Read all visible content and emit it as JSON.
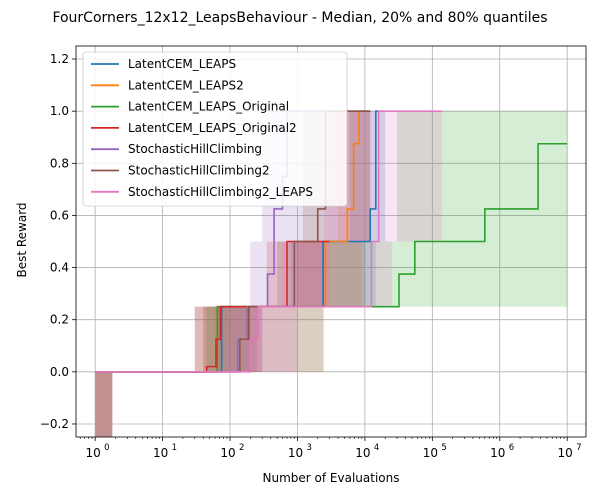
{
  "chart_data": {
    "type": "line",
    "title": "FourCorners_12x12_LeapsBehaviour - Median, 20% and 80% quantiles",
    "xlabel": "Number of Evaluations",
    "ylabel": "Best Reward",
    "xscale": "log",
    "xlim": [
      0.52,
      19000000
    ],
    "ylim": [
      -0.25,
      1.25
    ],
    "grid": true,
    "legend_position": "top-left",
    "xticks": [
      {
        "value": 1,
        "base": "10",
        "exp": "0"
      },
      {
        "value": 10,
        "base": "10",
        "exp": "1"
      },
      {
        "value": 100,
        "base": "10",
        "exp": "2"
      },
      {
        "value": 1000,
        "base": "10",
        "exp": "3"
      },
      {
        "value": 10000,
        "base": "10",
        "exp": "4"
      },
      {
        "value": 100000,
        "base": "10",
        "exp": "5"
      },
      {
        "value": 1000000,
        "base": "10",
        "exp": "6"
      },
      {
        "value": 10000000,
        "base": "10",
        "exp": "7"
      }
    ],
    "yticks": [
      {
        "value": -0.2,
        "label": "−0.2"
      },
      {
        "value": 0.0,
        "label": "0.0"
      },
      {
        "value": 0.2,
        "label": "0.2"
      },
      {
        "value": 0.4,
        "label": "0.4"
      },
      {
        "value": 0.6,
        "label": "0.6"
      },
      {
        "value": 0.8,
        "label": "0.8"
      },
      {
        "value": 1.0,
        "label": "1.0"
      },
      {
        "value": 1.2,
        "label": "1.2"
      }
    ],
    "series": [
      {
        "name": "LatentCEM_LEAPS",
        "color": "#1f77b4",
        "median": [
          [
            1,
            0
          ],
          [
            75,
            0
          ],
          [
            75,
            0.25
          ],
          [
            2400,
            0.25
          ],
          [
            2400,
            0.5
          ],
          [
            12000,
            0.5
          ],
          [
            12000,
            0.625
          ],
          [
            14500,
            0.625
          ],
          [
            14500,
            1.0
          ],
          [
            20000,
            1.0
          ]
        ],
        "band_lower": [
          [
            1,
            0
          ],
          [
            2400,
            0
          ],
          [
            2400,
            0.25
          ],
          [
            14500,
            0.25
          ],
          [
            14500,
            0.5
          ],
          [
            20000,
            0.5
          ]
        ],
        "band_upper": [
          [
            1,
            0
          ],
          [
            40,
            0
          ],
          [
            40,
            0.25
          ],
          [
            800,
            0.25
          ],
          [
            800,
            0.5
          ],
          [
            6000,
            0.5
          ],
          [
            6000,
            1.0
          ],
          [
            20000,
            1.0
          ]
        ]
      },
      {
        "name": "LatentCEM_LEAPS2",
        "color": "#ff7f0e",
        "median": [
          [
            1,
            0
          ],
          [
            65,
            0
          ],
          [
            65,
            0.25
          ],
          [
            2600,
            0.25
          ],
          [
            2600,
            0.5
          ],
          [
            5500,
            0.5
          ],
          [
            5500,
            0.625
          ],
          [
            6800,
            0.625
          ],
          [
            6800,
            0.875
          ],
          [
            8200,
            0.875
          ],
          [
            8200,
            1.0
          ],
          [
            12000,
            1.0
          ]
        ],
        "band_lower": [
          [
            1,
            0
          ],
          [
            2500,
            0
          ],
          [
            2500,
            0.25
          ],
          [
            9000,
            0.25
          ],
          [
            9000,
            0.5
          ],
          [
            12000,
            0.5
          ]
        ],
        "band_upper": [
          [
            1,
            0
          ],
          [
            40,
            0
          ],
          [
            40,
            0.25
          ],
          [
            1000,
            0.25
          ],
          [
            1000,
            0.5
          ],
          [
            4000,
            0.5
          ],
          [
            4000,
            1.0
          ],
          [
            12000,
            1.0
          ]
        ]
      },
      {
        "name": "LatentCEM_LEAPS_Original",
        "color": "#2ca02c",
        "median": [
          [
            1,
            0
          ],
          [
            65,
            0
          ],
          [
            65,
            0.25
          ],
          [
            32000,
            0.25
          ],
          [
            32000,
            0.375
          ],
          [
            55000,
            0.375
          ],
          [
            55000,
            0.5
          ],
          [
            600000,
            0.5
          ],
          [
            600000,
            0.625
          ],
          [
            3700000,
            0.625
          ],
          [
            3700000,
            0.875
          ],
          [
            10000000,
            0.875
          ]
        ],
        "band_lower": [
          [
            1,
            0
          ],
          [
            200,
            0
          ],
          [
            200,
            0.25
          ],
          [
            10000000,
            0.25
          ]
        ],
        "band_upper": [
          [
            1,
            0
          ],
          [
            45,
            0
          ],
          [
            45,
            0.25
          ],
          [
            3000,
            0.25
          ],
          [
            3000,
            0.5
          ],
          [
            30000,
            0.5
          ],
          [
            30000,
            1.0
          ],
          [
            10000000,
            1.0
          ]
        ]
      },
      {
        "name": "LatentCEM_LEAPS_Original2",
        "color": "#d62728",
        "median": [
          [
            1,
            0
          ],
          [
            45,
            0
          ],
          [
            45,
            0.02
          ],
          [
            62,
            0.02
          ],
          [
            62,
            0.125
          ],
          [
            72,
            0.125
          ],
          [
            72,
            0.25
          ],
          [
            700,
            0.25
          ],
          [
            700,
            0.5
          ],
          [
            3000,
            0.5
          ]
        ],
        "band_lower": [
          [
            1,
            0
          ],
          [
            300,
            0
          ],
          [
            300,
            0.25
          ],
          [
            3000,
            0.25
          ]
        ],
        "band_upper": [
          [
            1,
            0
          ],
          [
            30,
            0
          ],
          [
            30,
            0.25
          ],
          [
            350,
            0.25
          ],
          [
            350,
            0.5
          ],
          [
            3000,
            0.5
          ]
        ]
      },
      {
        "name": "StochasticHillClimbing",
        "color": "#9467bd",
        "median": [
          [
            1,
            0
          ],
          [
            130,
            0
          ],
          [
            130,
            0.125
          ],
          [
            180,
            0.125
          ],
          [
            180,
            0.25
          ],
          [
            360,
            0.25
          ],
          [
            360,
            0.375
          ],
          [
            450,
            0.375
          ],
          [
            450,
            0.625
          ],
          [
            600,
            0.625
          ],
          [
            600,
            0.75
          ],
          [
            700,
            0.75
          ],
          [
            700,
            1.0
          ],
          [
            12000,
            1.0
          ]
        ],
        "band_lower": [
          [
            1,
            0
          ],
          [
            300,
            0
          ],
          [
            300,
            0.25
          ],
          [
            2500,
            0.25
          ],
          [
            2500,
            0.5
          ],
          [
            12000,
            0.5
          ]
        ],
        "band_upper": [
          [
            1,
            0
          ],
          [
            60,
            0
          ],
          [
            60,
            0.25
          ],
          [
            200,
            0.25
          ],
          [
            200,
            0.5
          ],
          [
            300,
            0.5
          ],
          [
            300,
            1.0
          ],
          [
            12000,
            1.0
          ]
        ]
      },
      {
        "name": "StochasticHillClimbing2",
        "color": "#8c564b",
        "median": [
          [
            1,
            0
          ],
          [
            140,
            0
          ],
          [
            140,
            0.125
          ],
          [
            190,
            0.125
          ],
          [
            190,
            0.25
          ],
          [
            900,
            0.25
          ],
          [
            900,
            0.5
          ],
          [
            2000,
            0.5
          ],
          [
            2000,
            0.625
          ],
          [
            2600,
            0.625
          ],
          [
            2600,
            1.0
          ],
          [
            12000,
            1.0
          ]
        ],
        "band_lower": [
          [
            1,
            0
          ],
          [
            250,
            0
          ],
          [
            250,
            0.25
          ],
          [
            10000,
            0.25
          ],
          [
            10000,
            0.5
          ],
          [
            12000,
            0.5
          ]
        ],
        "band_upper": [
          [
            1,
            0
          ],
          [
            30,
            0
          ],
          [
            30,
            0.25
          ],
          [
            500,
            0.25
          ],
          [
            500,
            0.5
          ],
          [
            1200,
            0.5
          ],
          [
            1200,
            1.0
          ],
          [
            12000,
            1.0
          ]
        ]
      },
      {
        "name": "StochasticHillClimbing2_LEAPS",
        "color": "#e377c2",
        "median": [
          [
            1,
            0
          ],
          [
            200,
            0
          ],
          [
            200,
            0.125
          ],
          [
            260,
            0.125
          ],
          [
            260,
            0.25
          ],
          [
            12500,
            0.25
          ],
          [
            12500,
            0.5
          ],
          [
            16000,
            0.5
          ],
          [
            16000,
            1.0
          ],
          [
            140000,
            1.0
          ]
        ],
        "band_lower": [
          [
            1,
            0
          ],
          [
            1000,
            0
          ],
          [
            1000,
            0.25
          ],
          [
            25000,
            0.25
          ],
          [
            25000,
            0.5
          ],
          [
            140000,
            0.5
          ]
        ],
        "band_upper": [
          [
            1,
            0
          ],
          [
            90,
            0
          ],
          [
            90,
            0.25
          ],
          [
            600,
            0.25
          ],
          [
            600,
            0.5
          ],
          [
            2500,
            0.5
          ],
          [
            2500,
            1.0
          ],
          [
            140000,
            1.0
          ]
        ]
      }
    ],
    "initial_bar": {
      "x0": 1,
      "x1": 1.8,
      "y0": -0.25,
      "y1": 0.0,
      "color": "#c09190"
    }
  }
}
